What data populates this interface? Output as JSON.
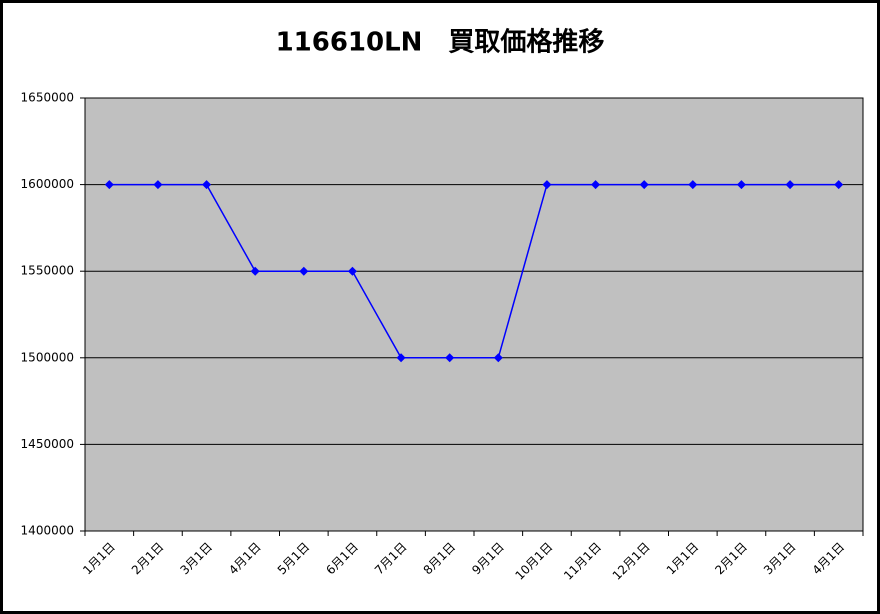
{
  "chart_data": {
    "type": "line",
    "title": "116610LN　買取価格推移",
    "categories": [
      "1月1日",
      "2月1日",
      "3月1日",
      "4月1日",
      "5月1日",
      "6月1日",
      "7月1日",
      "8月1日",
      "9月1日",
      "10月1日",
      "11月1日",
      "12月1日",
      "1月1日",
      "2月1日",
      "3月1日",
      "4月1日"
    ],
    "series": [
      {
        "color": "#0000ff",
        "values": [
          1600000,
          1600000,
          1600000,
          1550000,
          1550000,
          1550000,
          1500000,
          1500000,
          1500000,
          1600000,
          1600000,
          1600000,
          1600000,
          1600000,
          1600000,
          1600000
        ]
      }
    ],
    "ylim": [
      1400000,
      1650000
    ],
    "yticks": [
      1400000,
      1450000,
      1500000,
      1550000,
      1600000,
      1650000
    ],
    "grid": true,
    "plot_background": "#c0c0c0"
  }
}
